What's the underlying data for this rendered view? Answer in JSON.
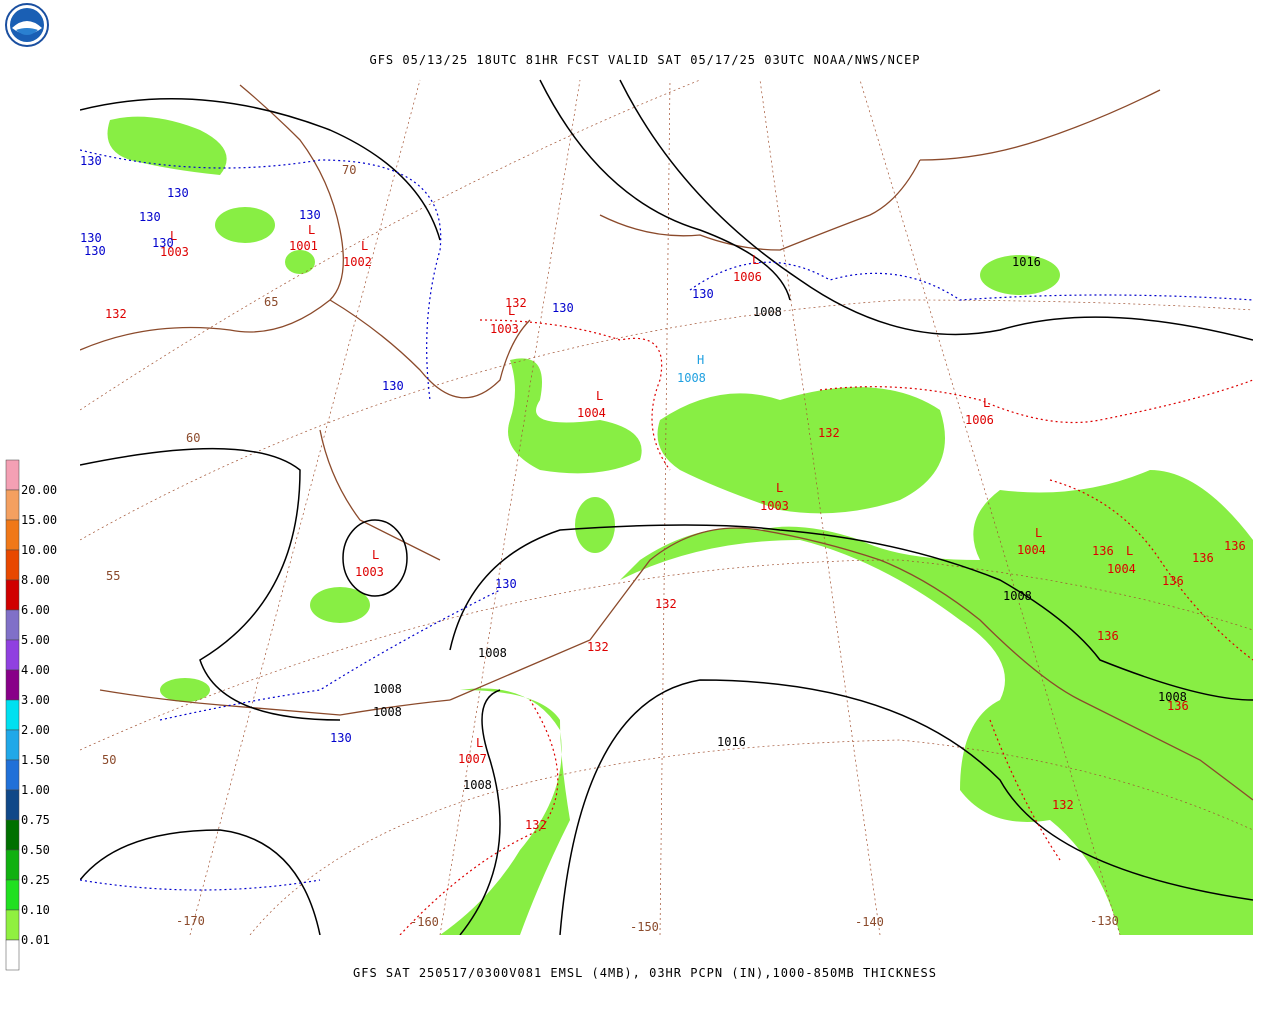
{
  "header": {
    "title": "GFS 05/13/25 18UTC 81HR FCST VALID SAT 05/17/25 03UTC NOAA/NWS/NCEP"
  },
  "footer": {
    "caption": "GFS SAT 250517/0300V081 EMSL (4MB), 03HR PCPN (IN),1000-850MB THICKNESS"
  },
  "legend": {
    "labels": [
      "20.00",
      "15.00",
      "10.00",
      "8.00",
      "6.00",
      "5.00",
      "4.00",
      "3.00",
      "2.00",
      "1.50",
      "1.00",
      "0.75",
      "0.50",
      "0.25",
      "0.10",
      "0.01"
    ],
    "colors": [
      "#f4a0b4",
      "#f4a060",
      "#f07818",
      "#e84800",
      "#d00000",
      "#8070c8",
      "#9040e0",
      "#880088",
      "#00e0f0",
      "#20a8e8",
      "#2070d8",
      "#104888",
      "#007000",
      "#10b010",
      "#20e020",
      "#90f040",
      "#ffffff"
    ]
  },
  "map": {
    "lat_labels": [
      "70",
      "65",
      "60",
      "55",
      "50"
    ],
    "lon_labels": [
      "-170",
      "-160",
      "-150",
      "-140",
      "-130"
    ],
    "lows": [
      {
        "symbol": "L",
        "value": "1003"
      },
      {
        "symbol": "L",
        "value": "1001"
      },
      {
        "symbol": "L",
        "value": "1002"
      },
      {
        "symbol": "L",
        "value": "1003"
      },
      {
        "symbol": "L",
        "value": "1004"
      },
      {
        "symbol": "L",
        "value": "1006"
      },
      {
        "symbol": "L",
        "value": "1006"
      },
      {
        "symbol": "L",
        "value": "1003"
      },
      {
        "symbol": "L",
        "value": "1003"
      },
      {
        "symbol": "L",
        "value": "1004"
      },
      {
        "symbol": "L",
        "value": "1004"
      },
      {
        "symbol": "L",
        "value": "1007"
      }
    ],
    "highs": [
      {
        "symbol": "H",
        "value": "1008"
      }
    ],
    "isobar_labels": [
      "1016",
      "1008",
      "1008",
      "1008",
      "1008",
      "1008",
      "1008",
      "1016",
      "1008"
    ],
    "thickness_blue": [
      "130",
      "130",
      "130",
      "130",
      "130",
      "130",
      "130",
      "130",
      "130",
      "130",
      "130",
      "130"
    ],
    "thickness_red": [
      "132",
      "132",
      "132",
      "132",
      "132",
      "132",
      "132",
      "136",
      "136",
      "136",
      "136",
      "136",
      "136"
    ]
  }
}
